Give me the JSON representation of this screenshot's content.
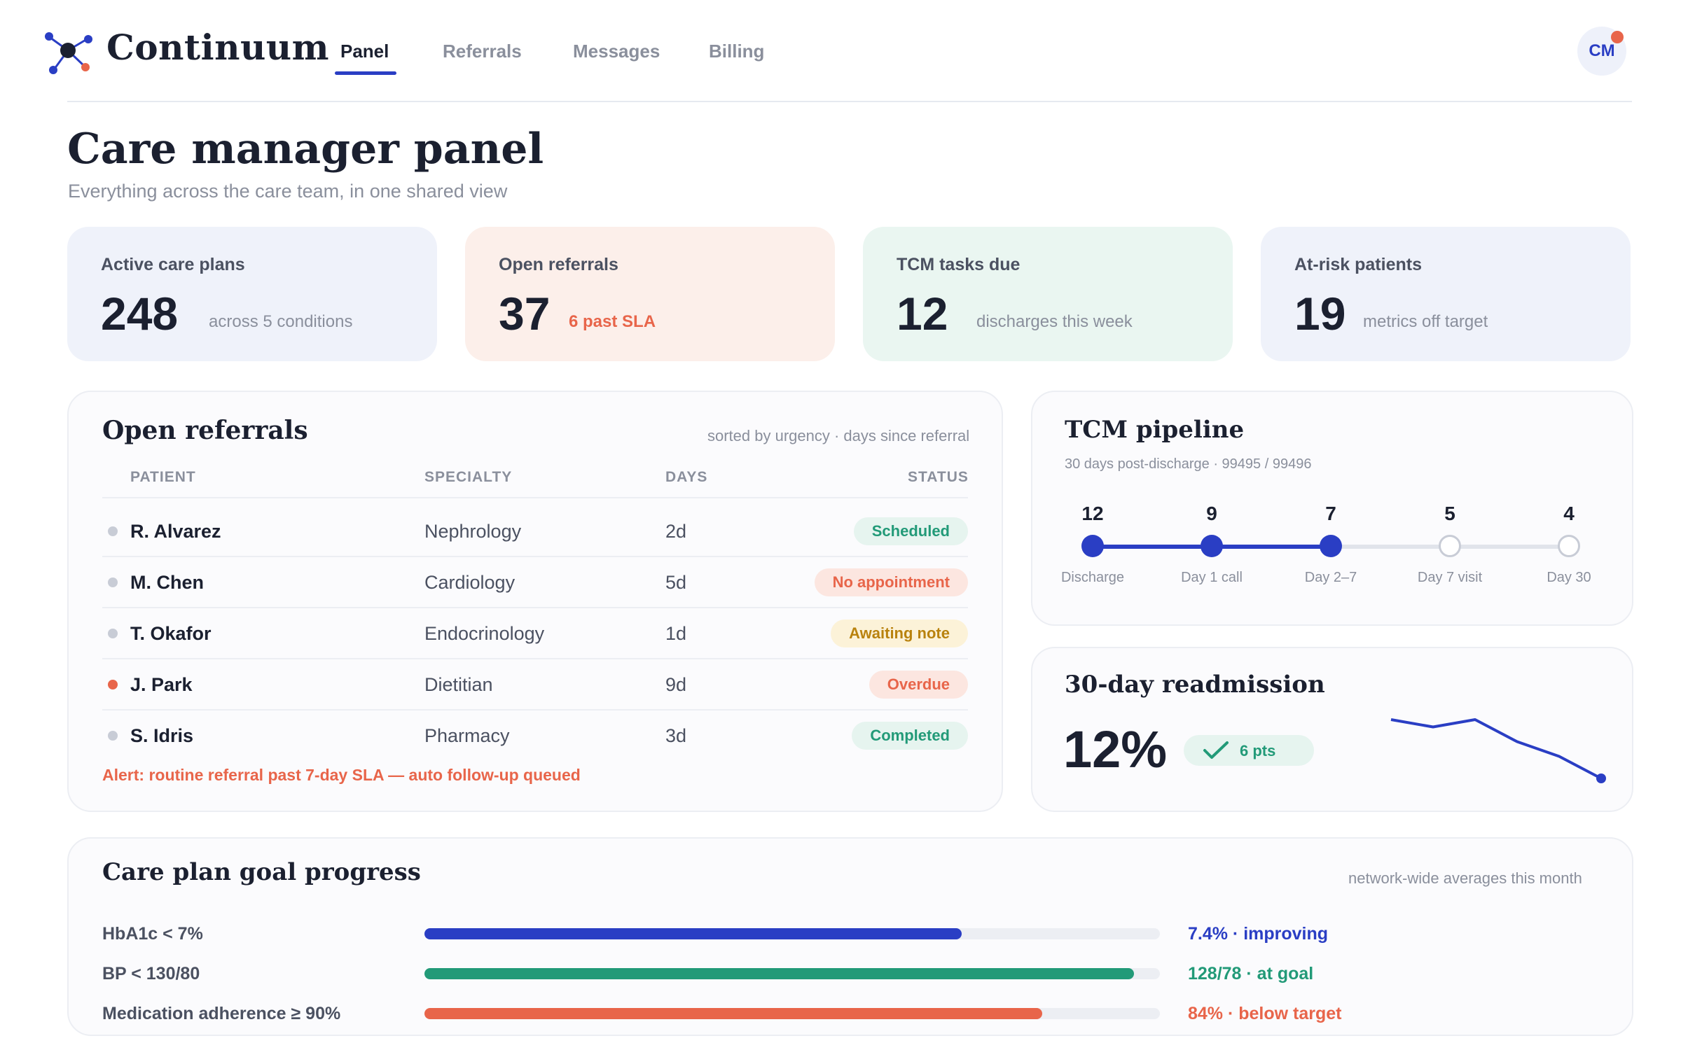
{
  "app": {
    "brand": "Continuum",
    "avatar_initials": "CM"
  },
  "nav": {
    "tabs": [
      {
        "label": "Panel",
        "active": true
      },
      {
        "label": "Referrals",
        "active": false
      },
      {
        "label": "Messages",
        "active": false
      },
      {
        "label": "Billing",
        "active": false
      }
    ]
  },
  "header": {
    "title": "Care manager panel",
    "subtitle": "Everything across the care team, in one shared view"
  },
  "kpis": [
    {
      "label": "Active care plans",
      "value": "248",
      "note": "across 5 conditions",
      "bg": "#eff2fa"
    },
    {
      "label": "Open referrals",
      "value": "37",
      "note": "6 past SLA",
      "bg": "#fcefea"
    },
    {
      "label": "TCM tasks due",
      "value": "12",
      "note": "discharges this week",
      "bg": "#eaf6f1"
    },
    {
      "label": "At-risk patients",
      "value": "19",
      "note": "metrics off target",
      "bg": "#eff2fa"
    }
  ],
  "referrals": {
    "title": "Open referrals",
    "meta": "sorted by urgency · days since referral",
    "columns": [
      "PATIENT",
      "SPECIALTY",
      "DAYS",
      "STATUS"
    ],
    "rows": [
      {
        "patient": "R. Alvarez",
        "specialty": "Nephrology",
        "days": "2d",
        "status": "Scheduled"
      },
      {
        "patient": "M. Chen",
        "specialty": "Cardiology",
        "days": "5d",
        "status": "No appointment"
      },
      {
        "patient": "T. Okafor",
        "specialty": "Endocrinology",
        "days": "1d",
        "status": "Awaiting note"
      },
      {
        "patient": "J. Park",
        "specialty": "Dietitian",
        "days": "9d",
        "status": "Overdue"
      },
      {
        "patient": "S. Idris",
        "specialty": "Pharmacy",
        "days": "3d",
        "status": "Completed"
      }
    ],
    "alert": "Alert: routine referral past 7-day SLA — auto follow-up queued"
  },
  "tcm": {
    "title": "TCM pipeline",
    "meta": "30 days post-discharge · 99495 / 99496",
    "stages": [
      {
        "count": "12",
        "label": "Discharge",
        "done": true
      },
      {
        "count": "9",
        "label": "Day 1 call",
        "done": true
      },
      {
        "count": "7",
        "label": "Day 2–7",
        "done": true
      },
      {
        "count": "5",
        "label": "Day 7 visit",
        "done": false
      },
      {
        "count": "4",
        "label": "Day 30",
        "done": false
      }
    ]
  },
  "readmission": {
    "title": "30-day readmission",
    "value": "12%",
    "delta": "6 pts",
    "trend": [
      7,
      6,
      7,
      4,
      2,
      -1
    ],
    "color": "#2a3ec4"
  },
  "goals": {
    "title": "Care plan goal progress",
    "meta": "network-wide averages this month",
    "items": [
      {
        "label": "HbA1c < 7%",
        "progress": 0.73,
        "value": "7.4% · improving",
        "color": "#2a3ec4"
      },
      {
        "label": "BP < 130/80",
        "progress": 0.965,
        "value": "128/78 · at goal",
        "color": "#229a78"
      },
      {
        "label": "Medication adherence ≥ 90%",
        "progress": 0.84,
        "value": "84% · below target",
        "color": "#e8654a"
      }
    ]
  }
}
